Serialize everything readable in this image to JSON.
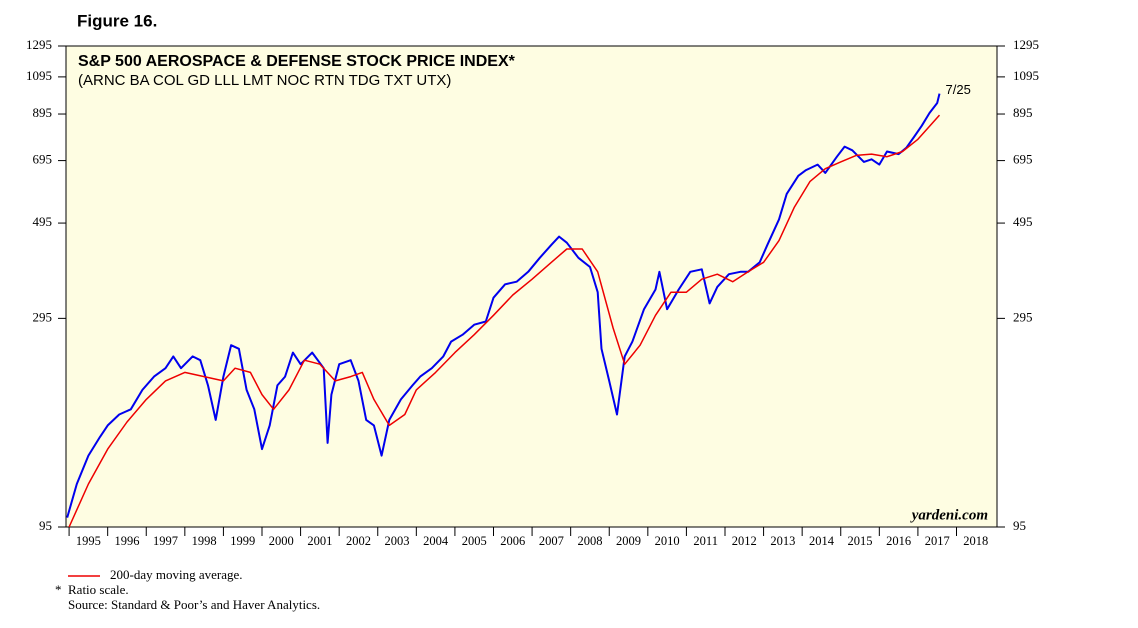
{
  "figure_label": "Figure 16.",
  "chart_data": {
    "type": "line",
    "title": "S&P 500 AEROSPACE & DEFENSE STOCK PRICE INDEX*",
    "subtitle": "(ARNC BA COL GD LLL LMT NOC RTN TDG TXT UTX)",
    "log_y": true,
    "ylim": [
      95,
      1295
    ],
    "yticks": [
      95,
      295,
      495,
      695,
      895,
      1095,
      1295
    ],
    "xlim": [
      1994.92,
      2019.05
    ],
    "xticks": [
      1995,
      1996,
      1997,
      1998,
      1999,
      2000,
      2001,
      2002,
      2003,
      2004,
      2005,
      2006,
      2007,
      2008,
      2009,
      2010,
      2011,
      2012,
      2013,
      2014,
      2015,
      2016,
      2017,
      2018
    ],
    "series": [
      {
        "color": "#0000ee",
        "x": [
          1994.95,
          1995.2,
          1995.5,
          1995.8,
          1996.0,
          1996.3,
          1996.6,
          1996.9,
          1997.2,
          1997.5,
          1997.7,
          1997.9,
          1998.2,
          1998.4,
          1998.6,
          1998.8,
          1999.0,
          1999.2,
          1999.4,
          1999.6,
          1999.8,
          2000.0,
          2000.2,
          2000.4,
          2000.6,
          2000.8,
          2001.0,
          2001.3,
          2001.6,
          2001.7,
          2001.8,
          2002.0,
          2002.3,
          2002.5,
          2002.7,
          2002.9,
          2003.1,
          2003.3,
          2003.6,
          2003.9,
          2004.1,
          2004.4,
          2004.7,
          2004.9,
          2005.2,
          2005.5,
          2005.8,
          2006.0,
          2006.3,
          2006.6,
          2006.9,
          2007.2,
          2007.5,
          2007.7,
          2007.9,
          2008.2,
          2008.5,
          2008.7,
          2008.8,
          2009.0,
          2009.2,
          2009.4,
          2009.6,
          2009.9,
          2010.2,
          2010.3,
          2010.5,
          2010.8,
          2011.1,
          2011.4,
          2011.6,
          2011.8,
          2012.1,
          2012.4,
          2012.6,
          2012.9,
          2013.1,
          2013.4,
          2013.6,
          2013.9,
          2014.1,
          2014.4,
          2014.6,
          2014.9,
          2015.1,
          2015.3,
          2015.6,
          2015.8,
          2016.0,
          2016.2,
          2016.5,
          2016.7,
          2016.9,
          2017.1,
          2017.3,
          2017.5,
          2017.56
        ],
        "values": [
          100,
          120,
          140,
          155,
          165,
          175,
          180,
          200,
          215,
          225,
          240,
          225,
          240,
          235,
          205,
          170,
          215,
          255,
          250,
          200,
          180,
          145,
          165,
          205,
          215,
          245,
          230,
          245,
          225,
          150,
          195,
          230,
          235,
          210,
          170,
          165,
          140,
          170,
          190,
          205,
          215,
          225,
          240,
          260,
          270,
          285,
          290,
          330,
          355,
          360,
          380,
          410,
          440,
          460,
          445,
          410,
          390,
          340,
          250,
          210,
          175,
          240,
          260,
          310,
          345,
          380,
          310,
          345,
          380,
          385,
          320,
          350,
          375,
          380,
          380,
          400,
          440,
          505,
          580,
          640,
          660,
          680,
          650,
          710,
          750,
          735,
          690,
          700,
          680,
          730,
          720,
          745,
          790,
          840,
          900,
          950,
          1000
        ]
      },
      {
        "name": "200-day moving average.",
        "color": "#ee0000",
        "x": [
          1995.0,
          1995.5,
          1996.0,
          1996.5,
          1997.0,
          1997.5,
          1998.0,
          1998.5,
          1999.0,
          1999.3,
          1999.7,
          2000.0,
          2000.3,
          2000.7,
          2001.1,
          2001.5,
          2001.9,
          2002.3,
          2002.6,
          2002.9,
          2003.3,
          2003.7,
          2004.0,
          2004.5,
          2005.0,
          2005.5,
          2006.0,
          2006.5,
          2007.0,
          2007.5,
          2007.9,
          2008.3,
          2008.7,
          2009.1,
          2009.4,
          2009.8,
          2010.2,
          2010.6,
          2011.0,
          2011.4,
          2011.8,
          2012.2,
          2012.6,
          2013.0,
          2013.4,
          2013.8,
          2014.2,
          2014.6,
          2015.0,
          2015.4,
          2015.8,
          2016.2,
          2016.6,
          2017.0,
          2017.56
        ],
        "values": [
          95,
          120,
          145,
          168,
          190,
          210,
          220,
          215,
          210,
          225,
          220,
          195,
          180,
          200,
          235,
          230,
          210,
          215,
          220,
          190,
          165,
          175,
          200,
          220,
          245,
          270,
          300,
          335,
          365,
          400,
          430,
          430,
          380,
          280,
          230,
          255,
          300,
          340,
          340,
          365,
          375,
          360,
          380,
          400,
          450,
          540,
          620,
          665,
          690,
          715,
          720,
          710,
          730,
          780,
          890
        ]
      }
    ],
    "annotations": [
      "7/25",
      "yardeni.com"
    ],
    "notes": [
      "*",
      "Ratio scale.",
      "Source: Standard & Poor’s and Haver Analytics."
    ]
  }
}
